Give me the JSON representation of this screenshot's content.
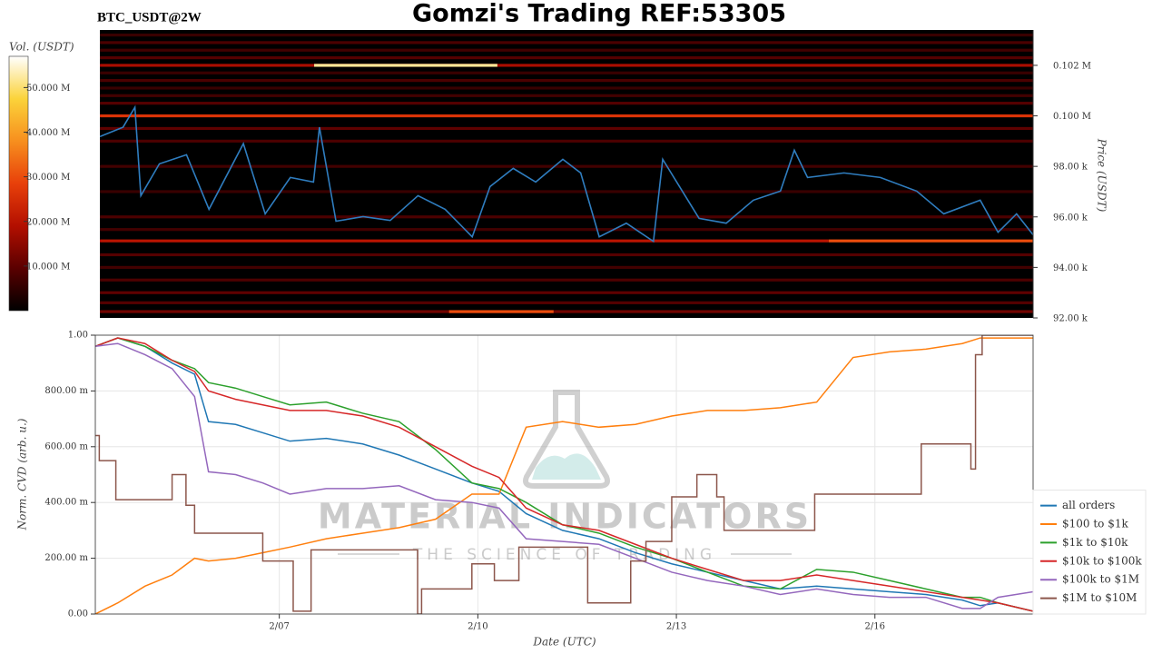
{
  "title": "Gomzi's Trading REF:53305",
  "chart_data": [
    {
      "type": "heatmap",
      "title": "BTC_USDT@2W",
      "ylabel": "Price (USDT)",
      "xlim": [
        4.28,
        18.39
      ],
      "ylim": [
        92000,
        103400
      ],
      "yticks": [
        {
          "value": 92000,
          "label": "92.00 k"
        },
        {
          "value": 94000,
          "label": "94.00 k"
        },
        {
          "value": 96000,
          "label": "96.00 k"
        },
        {
          "value": 98000,
          "label": "98.00 k"
        },
        {
          "value": 100000,
          "label": "0.100 M"
        },
        {
          "value": 102000,
          "label": "0.102 M"
        }
      ],
      "x": [
        4.28,
        4.63,
        4.81,
        4.9,
        5.18,
        5.59,
        5.93,
        6.45,
        6.78,
        7.16,
        7.51,
        7.6,
        7.85,
        8.26,
        8.67,
        9.09,
        9.5,
        9.91,
        10.18,
        10.53,
        10.87,
        11.28,
        11.55,
        11.83,
        12.24,
        12.65,
        12.79,
        13.34,
        13.75,
        14.16,
        14.57,
        14.78,
        14.98,
        15.53,
        16.08,
        16.63,
        17.04,
        17.59,
        17.86,
        18.14,
        18.39
      ],
      "line": {
        "color": "#2f7dbf",
        "values": [
          99180,
          99550,
          100340,
          96840,
          98100,
          98460,
          96300,
          98900,
          96120,
          97560,
          97380,
          99550,
          95830,
          96010,
          95860,
          96840,
          96300,
          95210,
          97200,
          97920,
          97380,
          98280,
          97740,
          95210,
          95750,
          95030,
          98280,
          95940,
          95750,
          96660,
          97020,
          98640,
          97560,
          97740,
          97560,
          97020,
          96120,
          96660,
          95390,
          96120,
          95290
        ]
      },
      "levels": [
        {
          "price": 103200,
          "volume": 6000000,
          "x": [
            4.28,
            18.39
          ]
        },
        {
          "price": 102900,
          "volume": 8000000,
          "x": [
            4.28,
            18.39
          ]
        },
        {
          "price": 102600,
          "volume": 7000000,
          "x": [
            4.28,
            18.39
          ]
        },
        {
          "price": 102300,
          "volume": 9000000,
          "x": [
            4.28,
            18.39
          ]
        },
        {
          "price": 102000,
          "volume": 18000000,
          "x": [
            4.28,
            18.39
          ]
        },
        {
          "price": 102000,
          "volume": 52000000,
          "x": [
            7.52,
            10.29
          ]
        },
        {
          "price": 101700,
          "volume": 6000000,
          "x": [
            4.28,
            18.39
          ]
        },
        {
          "price": 101400,
          "volume": 8000000,
          "x": [
            4.28,
            18.39
          ]
        },
        {
          "price": 101100,
          "volume": 6000000,
          "x": [
            4.28,
            18.39
          ]
        },
        {
          "price": 100800,
          "volume": 7000000,
          "x": [
            4.28,
            18.39
          ]
        },
        {
          "price": 100500,
          "volume": 9000000,
          "x": [
            4.28,
            18.39
          ]
        },
        {
          "price": 100000,
          "volume": 26000000,
          "x": [
            4.28,
            18.39
          ]
        },
        {
          "price": 99500,
          "volume": 10000000,
          "x": [
            4.28,
            18.39
          ]
        },
        {
          "price": 99000,
          "volume": 8000000,
          "x": [
            4.28,
            18.39
          ]
        },
        {
          "price": 98000,
          "volume": 7000000,
          "x": [
            4.28,
            18.39
          ]
        },
        {
          "price": 97000,
          "volume": 6000000,
          "x": [
            4.28,
            18.39
          ]
        },
        {
          "price": 96000,
          "volume": 8000000,
          "x": [
            4.28,
            18.39
          ]
        },
        {
          "price": 95500,
          "volume": 7000000,
          "x": [
            4.28,
            18.39
          ]
        },
        {
          "price": 95050,
          "volume": 20000000,
          "x": [
            4.28,
            15.3
          ]
        },
        {
          "price": 95050,
          "volume": 30000000,
          "x": [
            15.3,
            18.39
          ]
        },
        {
          "price": 94500,
          "volume": 9000000,
          "x": [
            4.28,
            18.39
          ]
        },
        {
          "price": 94000,
          "volume": 7000000,
          "x": [
            4.28,
            18.39
          ]
        },
        {
          "price": 93500,
          "volume": 8000000,
          "x": [
            4.28,
            18.39
          ]
        },
        {
          "price": 93000,
          "volume": 10000000,
          "x": [
            4.28,
            18.39
          ]
        },
        {
          "price": 92600,
          "volume": 9000000,
          "x": [
            4.28,
            18.39
          ]
        },
        {
          "price": 92250,
          "volume": 12000000,
          "x": [
            4.28,
            18.39
          ]
        },
        {
          "price": 92250,
          "volume": 30000000,
          "x": [
            9.56,
            11.14
          ]
        }
      ],
      "colorbar": {
        "label": "Vol. (USDT)",
        "lim": [
          0,
          57000000
        ],
        "ticks": [
          {
            "value": 10000000,
            "label": "10.000 M"
          },
          {
            "value": 20000000,
            "label": "20.000 M"
          },
          {
            "value": 30000000,
            "label": "30.000 M"
          },
          {
            "value": 40000000,
            "label": "40.000 M"
          },
          {
            "value": 50000000,
            "label": "50.000 M"
          }
        ],
        "colors": [
          "#000000",
          "#5a0000",
          "#b30f00",
          "#e8400a",
          "#f78f1e",
          "#fbd33a",
          "#ffffff"
        ]
      }
    },
    {
      "type": "line",
      "xlabel": "Date (UTC)",
      "ylabel": "Norm. CVD (arb. u.)",
      "grid": true,
      "legend": "lower right",
      "watermark": [
        "MATERIAL INDICATORS",
        "THE SCIENCE OF TRADING"
      ],
      "xlim": [
        4.22,
        18.39
      ],
      "ylim": [
        0,
        1
      ],
      "xticks": [
        {
          "value": 7,
          "label": "2/07"
        },
        {
          "value": 10,
          "label": "2/10"
        },
        {
          "value": 13,
          "label": "2/13"
        },
        {
          "value": 16,
          "label": "2/16"
        }
      ],
      "yticks": [
        {
          "value": 0,
          "label": "0.00"
        },
        {
          "value": 0.2,
          "label": "200.00 m"
        },
        {
          "value": 0.4,
          "label": "400.00 m"
        },
        {
          "value": 0.6,
          "label": "600.00 m"
        },
        {
          "value": 0.8,
          "label": "800.00 m"
        },
        {
          "value": 1,
          "label": "1.00"
        }
      ],
      "x": [
        4.22,
        4.56,
        4.97,
        5.38,
        5.72,
        5.93,
        6.34,
        6.75,
        7.16,
        7.71,
        8.26,
        8.81,
        9.36,
        9.91,
        10.32,
        10.73,
        11.28,
        11.83,
        12.38,
        12.93,
        13.47,
        14.02,
        14.57,
        15.12,
        15.67,
        16.22,
        16.77,
        17.32,
        17.59,
        17.86,
        18.39
      ],
      "series": [
        {
          "name": "all orders",
          "color": "#1f77b4",
          "values": [
            0.96,
            0.99,
            0.96,
            0.9,
            0.86,
            0.69,
            0.68,
            0.65,
            0.62,
            0.63,
            0.61,
            0.57,
            0.52,
            0.47,
            0.44,
            0.36,
            0.3,
            0.27,
            0.22,
            0.18,
            0.15,
            0.12,
            0.09,
            0.1,
            0.09,
            0.08,
            0.07,
            0.05,
            0.03,
            0.04,
            0.01
          ]
        },
        {
          "name": "$100 to $1k",
          "color": "#ff7f0e",
          "values": [
            0.0,
            0.04,
            0.1,
            0.14,
            0.2,
            0.19,
            0.2,
            0.22,
            0.24,
            0.27,
            0.29,
            0.31,
            0.34,
            0.43,
            0.43,
            0.67,
            0.69,
            0.67,
            0.68,
            0.71,
            0.73,
            0.73,
            0.74,
            0.76,
            0.92,
            0.94,
            0.95,
            0.97,
            0.99,
            0.99,
            0.99
          ]
        },
        {
          "name": "$1k to $10k",
          "color": "#2ca02c",
          "values": [
            0.96,
            0.99,
            0.96,
            0.91,
            0.88,
            0.83,
            0.81,
            0.78,
            0.75,
            0.76,
            0.72,
            0.69,
            0.59,
            0.47,
            0.45,
            0.4,
            0.32,
            0.29,
            0.24,
            0.2,
            0.15,
            0.1,
            0.09,
            0.16,
            0.15,
            0.12,
            0.09,
            0.06,
            0.06,
            0.04,
            0.01
          ]
        },
        {
          "name": "$10k to $100k",
          "color": "#d62728",
          "values": [
            0.96,
            0.99,
            0.97,
            0.91,
            0.87,
            0.8,
            0.77,
            0.75,
            0.73,
            0.73,
            0.71,
            0.67,
            0.6,
            0.53,
            0.49,
            0.38,
            0.32,
            0.3,
            0.25,
            0.2,
            0.16,
            0.12,
            0.12,
            0.14,
            0.12,
            0.1,
            0.08,
            0.06,
            0.05,
            0.04,
            0.01
          ]
        },
        {
          "name": "$100k to $1M",
          "color": "#9467bd",
          "values": [
            0.96,
            0.97,
            0.93,
            0.88,
            0.78,
            0.51,
            0.5,
            0.47,
            0.43,
            0.45,
            0.45,
            0.46,
            0.41,
            0.4,
            0.38,
            0.27,
            0.26,
            0.25,
            0.2,
            0.15,
            0.12,
            0.1,
            0.07,
            0.09,
            0.07,
            0.06,
            0.06,
            0.02,
            0.02,
            0.06,
            0.08
          ]
        },
        {
          "name": "$1M to $10M",
          "color": "#8c564b",
          "step": "post",
          "x": [
            4.22,
            4.28,
            4.53,
            5.38,
            5.59,
            5.72,
            6.75,
            7.21,
            7.48,
            9.09,
            9.15,
            9.91,
            10.25,
            10.62,
            11.66,
            12.31,
            12.54,
            12.93,
            13.31,
            13.61,
            13.72,
            15.09,
            16.7,
            17.45,
            17.52,
            17.62,
            18.39
          ],
          "values": [
            0.64,
            0.55,
            0.41,
            0.5,
            0.39,
            0.29,
            0.19,
            0.01,
            0.23,
            0.0,
            0.09,
            0.18,
            0.12,
            0.24,
            0.04,
            0.19,
            0.26,
            0.42,
            0.5,
            0.42,
            0.3,
            0.43,
            0.61,
            0.52,
            0.93,
            1.0,
            1.0
          ]
        }
      ]
    }
  ]
}
